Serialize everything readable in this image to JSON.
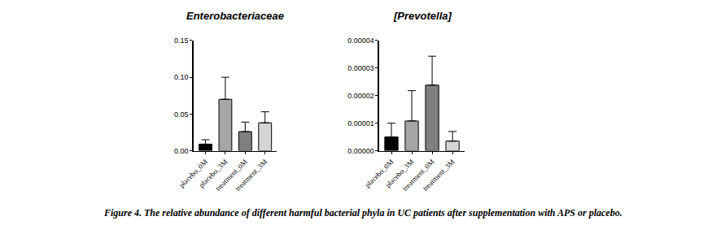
{
  "chart_data": [
    {
      "type": "bar",
      "title": "Enterobacteriaceae",
      "categories": [
        "placebo_0M",
        "placebo_3M",
        "treatment_0M",
        "treatment_3M"
      ],
      "values": [
        0.009,
        0.07,
        0.026,
        0.038
      ],
      "errors": [
        0.006,
        0.03,
        0.013,
        0.015
      ],
      "colors": [
        "#000000",
        "#a6a6a6",
        "#7f7f7f",
        "#d4d4d4"
      ],
      "ylim": [
        0,
        0.15
      ],
      "yticks": [
        {
          "value": 0,
          "label": "0.00"
        },
        {
          "value": 0.05,
          "label": "0.05"
        },
        {
          "value": 0.1,
          "label": "0.10"
        },
        {
          "value": 0.15,
          "label": "0.15"
        }
      ],
      "grid": false
    },
    {
      "type": "bar",
      "title": "[Prevotella]",
      "categories": [
        "placebo_0M",
        "placebo_3M",
        "treatment_0M",
        "treatment_3M"
      ],
      "values": [
        5e-06,
        1.08e-05,
        2.38e-05,
        3.5e-06
      ],
      "errors": [
        5e-06,
        1.1e-05,
        1.05e-05,
        3.5e-06
      ],
      "colors": [
        "#000000",
        "#a6a6a6",
        "#7f7f7f",
        "#d4d4d4"
      ],
      "ylim": [
        0,
        4e-05
      ],
      "yticks": [
        {
          "value": 0,
          "label": "0.00000"
        },
        {
          "value": 1e-05,
          "label": "0.00001"
        },
        {
          "value": 2e-05,
          "label": "0.00002"
        },
        {
          "value": 3e-05,
          "label": "0.00003"
        },
        {
          "value": 4e-05,
          "label": "0.00004"
        }
      ],
      "grid": false
    }
  ],
  "caption": "Figure 4. The relative abundance of different harmful bacterial phyla in UC patients after supplementation with APS or placebo."
}
